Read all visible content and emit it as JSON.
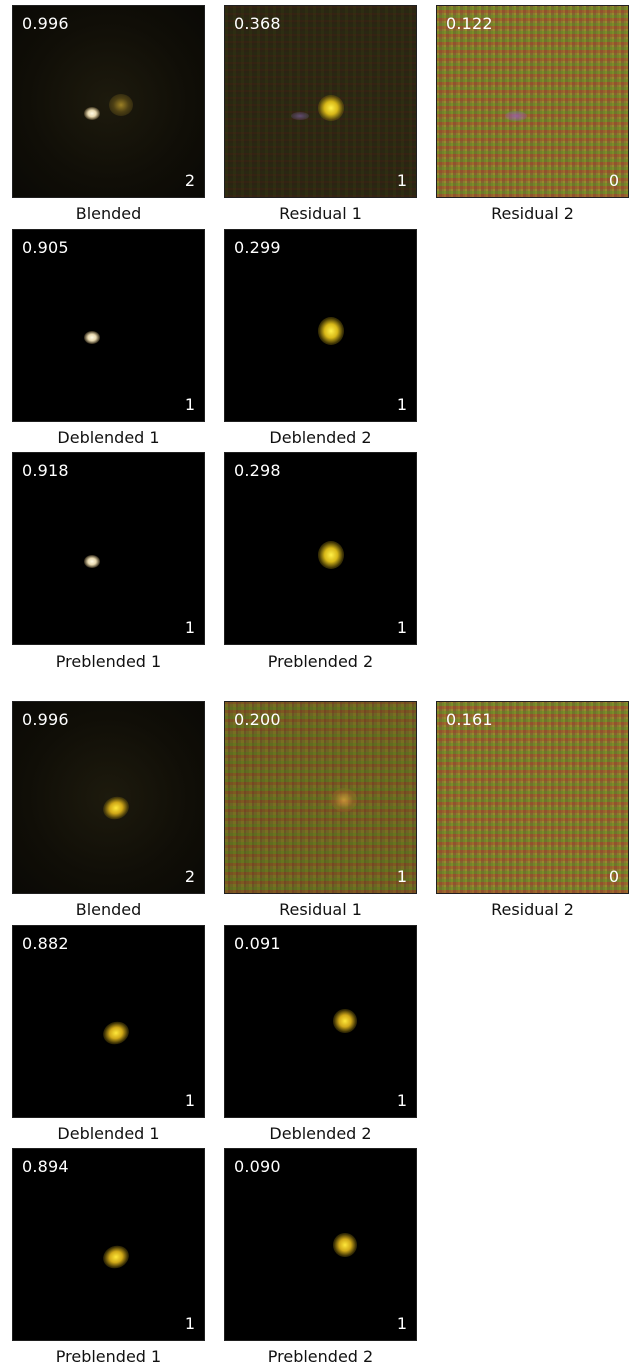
{
  "grids": [
    {
      "rows": [
        [
          {
            "score": "0.996",
            "count": "2",
            "caption": "Blended"
          },
          {
            "score": "0.368",
            "count": "1",
            "caption": "Residual 1"
          },
          {
            "score": "0.122",
            "count": "0",
            "caption": "Residual 2"
          }
        ],
        [
          {
            "score": "0.905",
            "count": "1",
            "caption": "Deblended 1"
          },
          {
            "score": "0.299",
            "count": "1",
            "caption": "Deblended 2"
          }
        ],
        [
          {
            "score": "0.918",
            "count": "1",
            "caption": "Preblended 1"
          },
          {
            "score": "0.298",
            "count": "1",
            "caption": "Preblended 2"
          }
        ]
      ]
    },
    {
      "rows": [
        [
          {
            "score": "0.996",
            "count": "2",
            "caption": "Blended"
          },
          {
            "score": "0.200",
            "count": "1",
            "caption": "Residual 1"
          },
          {
            "score": "0.161",
            "count": "0",
            "caption": "Residual 2"
          }
        ],
        [
          {
            "score": "0.882",
            "count": "1",
            "caption": "Deblended 1"
          },
          {
            "score": "0.091",
            "count": "1",
            "caption": "Deblended 2"
          }
        ],
        [
          {
            "score": "0.894",
            "count": "1",
            "caption": "Preblended 1"
          },
          {
            "score": "0.090",
            "count": "1",
            "caption": "Preblended 2"
          }
        ]
      ]
    }
  ]
}
